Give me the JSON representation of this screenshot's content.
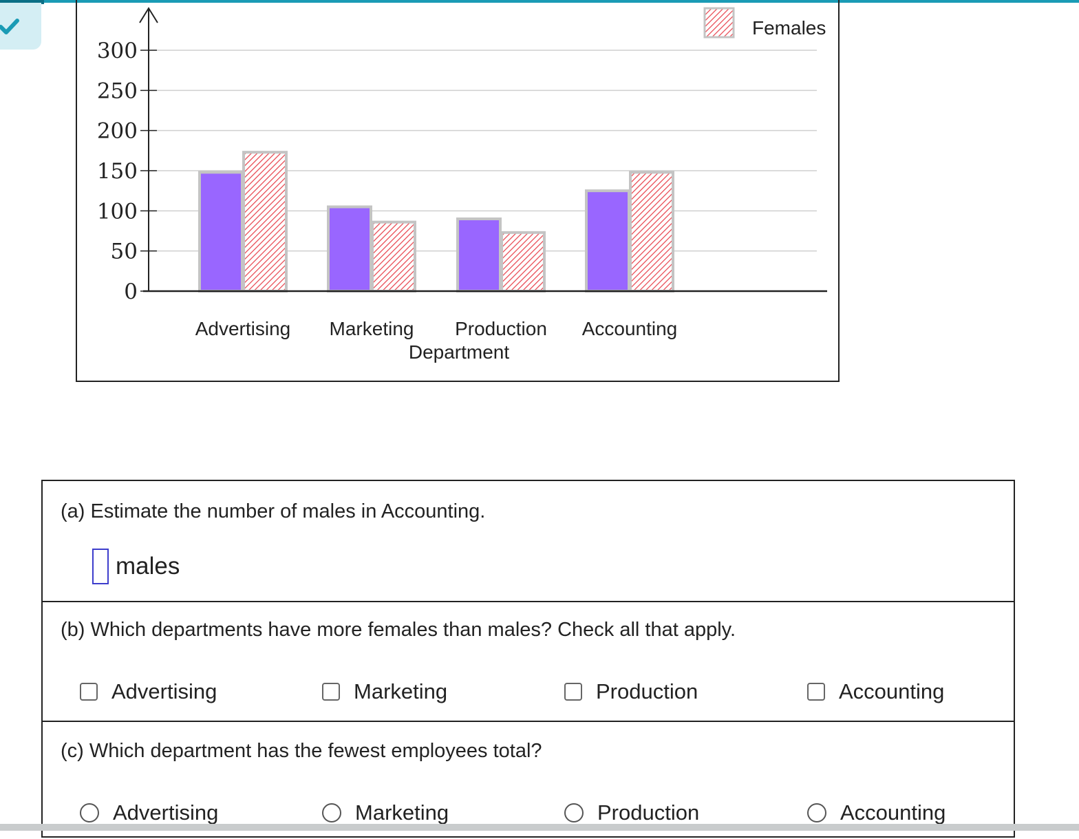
{
  "status": {
    "check_color": "#1a9bb5"
  },
  "chart_data": {
    "type": "bar",
    "xlabel": "Department",
    "ylabel": "",
    "ylim": [
      0,
      300
    ],
    "yticks": [
      0,
      50,
      100,
      150,
      200,
      250,
      300
    ],
    "categories": [
      "Advertising",
      "Marketing",
      "Production",
      "Accounting"
    ],
    "series": [
      {
        "name": "",
        "color": "#9966ff",
        "pattern": "solid",
        "values": [
          148,
          105,
          90,
          125
        ]
      },
      {
        "name": "Females",
        "color": "#e8404a",
        "pattern": "hatched",
        "values": [
          173,
          86,
          73,
          148
        ]
      }
    ],
    "legend": {
      "position": "top-right",
      "label": "Females"
    },
    "grid": true
  },
  "questions": {
    "a": {
      "text": "(a) Estimate the number of males in Accounting.",
      "input_value": "",
      "unit": "males"
    },
    "b": {
      "text": "(b) Which departments have more females than males? Check all that apply.",
      "options": [
        "Advertising",
        "Marketing",
        "Production",
        "Accounting"
      ]
    },
    "c": {
      "text": "(c) Which department has the fewest employees total?",
      "options": [
        "Advertising",
        "Marketing",
        "Production",
        "Accounting"
      ]
    }
  }
}
